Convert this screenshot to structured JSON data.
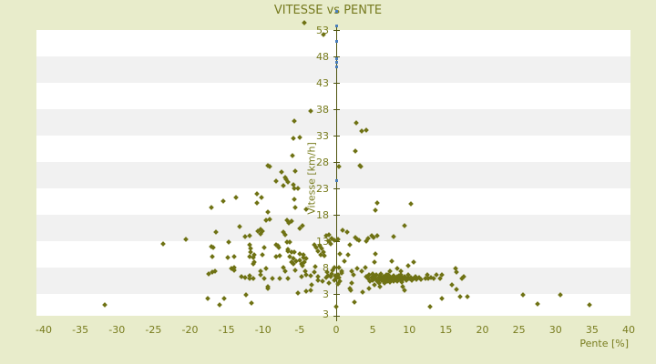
{
  "title": "VITESSE vs PENTE",
  "colors": {
    "page_background": "#e8eccb",
    "band_white": "#ffffff",
    "band_grey": "#f1f1f1",
    "axis_line": "#4f540e",
    "text_olive": "#787c1e",
    "point_olive": "#6f7214",
    "point_blue": "#4a7ebb"
  },
  "x_axis": {
    "label": "Pente [%]",
    "ticks": [
      -40,
      -35,
      -30,
      -25,
      -20,
      -15,
      -10,
      -5,
      0,
      5,
      10,
      15,
      20,
      25,
      30,
      35,
      40
    ],
    "min": -40,
    "max": 40
  },
  "y_axis": {
    "label": "Vitesse [km/h]",
    "ticks": [
      53,
      48,
      43,
      38,
      33,
      28,
      23,
      18,
      13,
      8,
      3
    ],
    "bottom_label": "3"
  },
  "chart_data": {
    "type": "scatter",
    "title": "VITESSE vs PENTE",
    "xlabel": "Pente [%]",
    "ylabel": "Vitesse [km/h]",
    "xlim": [
      -40,
      40
    ],
    "ylim": [
      -1.2,
      53
    ],
    "grid": "horizontal-bands",
    "legend": "none",
    "series": [
      {
        "name": "vitesse-vs-pente",
        "marker": "diamond",
        "color_key": "point_olive",
        "points": [
          [
            -31.6,
            0.9
          ],
          [
            -23.7,
            12.5
          ],
          [
            -20.5,
            13.3
          ],
          [
            -17.6,
            2.1
          ],
          [
            -17.4,
            6.8
          ],
          [
            -17.1,
            19.4
          ],
          [
            -17.1,
            12.0
          ],
          [
            -17.0,
            10.1
          ],
          [
            -16.9,
            7.0
          ],
          [
            -16.8,
            11.8
          ],
          [
            -16.6,
            7.3
          ],
          [
            -16.4,
            14.6
          ],
          [
            -15.9,
            0.9
          ],
          [
            -15.4,
            20.6
          ],
          [
            -15.3,
            2.1
          ],
          [
            -14.8,
            9.9
          ],
          [
            -14.7,
            12.8
          ],
          [
            -14.3,
            7.7
          ],
          [
            -14.0,
            10.1
          ],
          [
            -14.0,
            7.5
          ],
          [
            -13.9,
            8.0
          ],
          [
            -13.7,
            21.3
          ],
          [
            -13.2,
            15.8
          ],
          [
            -13.0,
            6.3
          ],
          [
            -12.5,
            13.9
          ],
          [
            -12.4,
            6.1
          ],
          [
            -12.3,
            2.7
          ],
          [
            -11.9,
            14.0
          ],
          [
            -11.9,
            12.3
          ],
          [
            -11.9,
            10.1
          ],
          [
            -11.8,
            6.4
          ],
          [
            -11.8,
            5.9
          ],
          [
            -11.7,
            11.6
          ],
          [
            -11.7,
            10.8
          ],
          [
            -11.6,
            1.3
          ],
          [
            -11.4,
            9.9
          ],
          [
            -11.4,
            8.7
          ],
          [
            -11.3,
            5.9
          ],
          [
            -11.2,
            10.4
          ],
          [
            -11.2,
            9.0
          ],
          [
            -10.9,
            20.2
          ],
          [
            -10.8,
            22.0
          ],
          [
            -10.7,
            14.9
          ],
          [
            -10.4,
            15.2
          ],
          [
            -10.4,
            14.4
          ],
          [
            -10.3,
            7.3
          ],
          [
            -10.3,
            6.6
          ],
          [
            -10.2,
            21.3
          ],
          [
            -10.1,
            14.9
          ],
          [
            -10.1,
            10.4
          ],
          [
            -9.9,
            11.8
          ],
          [
            -9.8,
            5.9
          ],
          [
            -9.6,
            17.0
          ],
          [
            -9.6,
            7.8
          ],
          [
            -9.4,
            18.5
          ],
          [
            -9.3,
            27.3
          ],
          [
            -9.3,
            4.4
          ],
          [
            -9.3,
            4.0
          ],
          [
            -9.1,
            27.1
          ],
          [
            -9.1,
            17.1
          ],
          [
            -8.7,
            5.9
          ],
          [
            -8.2,
            24.4
          ],
          [
            -8.2,
            12.3
          ],
          [
            -8.2,
            10.1
          ],
          [
            -8.0,
            12.1
          ],
          [
            -7.8,
            11.8
          ],
          [
            -7.7,
            10.2
          ],
          [
            -7.7,
            5.8
          ],
          [
            -7.5,
            26.1
          ],
          [
            -7.2,
            23.5
          ],
          [
            -7.2,
            14.6
          ],
          [
            -7.2,
            8.0
          ],
          [
            -7.0,
            25.1
          ],
          [
            -7.0,
            14.2
          ],
          [
            -7.0,
            7.3
          ],
          [
            -6.8,
            24.7
          ],
          [
            -6.7,
            17.0
          ],
          [
            -6.7,
            12.8
          ],
          [
            -6.6,
            24.2
          ],
          [
            -6.6,
            11.4
          ],
          [
            -6.6,
            11.1
          ],
          [
            -6.6,
            5.8
          ],
          [
            -6.5,
            16.4
          ],
          [
            -6.3,
            12.8
          ],
          [
            -6.3,
            10.1
          ],
          [
            -6.1,
            16.8
          ],
          [
            -6.1,
            10.8
          ],
          [
            -6.1,
            9.0
          ],
          [
            -6.0,
            29.2
          ],
          [
            -5.8,
            32.5
          ],
          [
            -5.8,
            23.7
          ],
          [
            -5.8,
            9.7
          ],
          [
            -5.8,
            8.7
          ],
          [
            -5.7,
            35.8
          ],
          [
            -5.7,
            23.0
          ],
          [
            -5.7,
            20.9
          ],
          [
            -5.7,
            10.9
          ],
          [
            -5.6,
            26.3
          ],
          [
            -5.6,
            19.4
          ],
          [
            -5.6,
            7.5
          ],
          [
            -5.5,
            9.2
          ],
          [
            -5.2,
            23.0
          ],
          [
            -5.2,
            3.2
          ],
          [
            -5.0,
            32.7
          ],
          [
            -5.0,
            15.4
          ],
          [
            -5.0,
            10.6
          ],
          [
            -5.0,
            9.4
          ],
          [
            -4.7,
            8.7
          ],
          [
            -4.7,
            6.3
          ],
          [
            -4.6,
            15.9
          ],
          [
            -4.6,
            8.3
          ],
          [
            -4.5,
            10.4
          ],
          [
            -4.5,
            9.9
          ],
          [
            -4.3,
            54.4
          ],
          [
            -4.3,
            9.0
          ],
          [
            -4.2,
            7.3
          ],
          [
            -4.1,
            19.0
          ],
          [
            -4.1,
            9.7
          ],
          [
            -4.1,
            6.6
          ],
          [
            -4.1,
            3.5
          ],
          [
            -3.5,
            37.7
          ],
          [
            -3.5,
            6.4
          ],
          [
            -3.5,
            3.7
          ],
          [
            -3.4,
            4.6
          ],
          [
            -3.0,
            12.3
          ],
          [
            -3.0,
            7.1
          ],
          [
            -2.9,
            8.2
          ],
          [
            -2.7,
            11.8
          ],
          [
            -2.5,
            11.1
          ],
          [
            -2.5,
            6.3
          ],
          [
            -2.5,
            5.6
          ],
          [
            -2.2,
            12.1
          ],
          [
            -2.1,
            10.4
          ],
          [
            -2.0,
            11.6
          ],
          [
            -1.9,
            5.4
          ],
          [
            -1.7,
            52.1
          ],
          [
            -1.7,
            10.8
          ],
          [
            -1.6,
            10.2
          ],
          [
            -1.4,
            14.0
          ],
          [
            -1.4,
            6.0
          ],
          [
            -1.2,
            7.0
          ],
          [
            -1.1,
            6.4
          ],
          [
            -1.0,
            14.2
          ],
          [
            -1.0,
            13.0
          ],
          [
            -1.0,
            5.0
          ],
          [
            -0.8,
            6.2
          ],
          [
            -0.7,
            12.5
          ],
          [
            -0.6,
            13.5
          ],
          [
            -0.6,
            6.8
          ],
          [
            -0.5,
            7.5
          ],
          [
            -0.3,
            5.5
          ],
          [
            -0.2,
            13.2
          ],
          [
            -0.2,
            7.9
          ],
          [
            -0.1,
            6.4
          ],
          [
            0.0,
            5.9
          ],
          [
            0.0,
            0.6
          ],
          [
            0.2,
            13.3
          ],
          [
            0.2,
            6.6
          ],
          [
            0.3,
            4.9
          ],
          [
            0.4,
            27.1
          ],
          [
            0.4,
            8.0
          ],
          [
            0.4,
            6.1
          ],
          [
            0.5,
            10.6
          ],
          [
            0.5,
            5.3
          ],
          [
            0.7,
            7.3
          ],
          [
            0.8,
            6.9
          ],
          [
            0.9,
            15.1
          ],
          [
            1.1,
            9.2
          ],
          [
            1.5,
            14.7
          ],
          [
            1.6,
            10.4
          ],
          [
            1.9,
            12.3
          ],
          [
            1.9,
            3.9
          ],
          [
            2.0,
            3.7
          ],
          [
            2.1,
            7.3
          ],
          [
            2.1,
            5.1
          ],
          [
            2.4,
            6.6
          ],
          [
            2.5,
            1.4
          ],
          [
            2.6,
            30.1
          ],
          [
            2.6,
            13.7
          ],
          [
            2.7,
            35.4
          ],
          [
            2.9,
            13.3
          ],
          [
            2.9,
            7.7
          ],
          [
            3.1,
            13.2
          ],
          [
            3.2,
            27.3
          ],
          [
            3.4,
            27.1
          ],
          [
            3.5,
            33.9
          ],
          [
            3.5,
            7.3
          ],
          [
            3.6,
            3.3
          ],
          [
            4.0,
            8.0
          ],
          [
            4.1,
            34.0
          ],
          [
            4.1,
            13.0
          ],
          [
            4.3,
            13.5
          ],
          [
            4.5,
            4.0
          ],
          [
            4.8,
            14.0
          ],
          [
            5.1,
            13.7
          ],
          [
            5.2,
            8.9
          ],
          [
            5.2,
            4.6
          ],
          [
            5.3,
            18.9
          ],
          [
            5.3,
            10.6
          ],
          [
            5.6,
            20.2
          ],
          [
            5.6,
            14.0
          ],
          [
            6.0,
            4.4
          ],
          [
            7.3,
            7.3
          ],
          [
            7.6,
            9.2
          ],
          [
            7.8,
            13.9
          ],
          [
            8.4,
            7.7
          ],
          [
            8.9,
            7.3
          ],
          [
            9.1,
            4.4
          ],
          [
            9.3,
            3.7
          ],
          [
            9.4,
            15.9
          ],
          [
            9.8,
            8.3
          ],
          [
            10.2,
            20.1
          ],
          [
            10.6,
            9.0
          ],
          [
            4.1,
            6.2
          ],
          [
            4.3,
            5.8
          ],
          [
            4.5,
            6.5
          ],
          [
            4.6,
            5.4
          ],
          [
            4.8,
            6.0
          ],
          [
            5.0,
            6.8
          ],
          [
            5.0,
            5.6
          ],
          [
            5.2,
            6.2
          ],
          [
            5.4,
            5.9
          ],
          [
            5.5,
            6.6
          ],
          [
            5.6,
            5.3
          ],
          [
            5.8,
            6.1
          ],
          [
            5.9,
            5.0
          ],
          [
            6.0,
            6.4
          ],
          [
            6.0,
            5.7
          ],
          [
            6.1,
            6.7
          ],
          [
            6.2,
            5.5
          ],
          [
            6.3,
            6.0
          ],
          [
            6.5,
            6.3
          ],
          [
            6.5,
            5.6
          ],
          [
            6.6,
            5.1
          ],
          [
            6.7,
            5.9
          ],
          [
            6.8,
            6.5
          ],
          [
            7.0,
            6.1
          ],
          [
            7.0,
            5.4
          ],
          [
            7.1,
            6.6
          ],
          [
            7.2,
            5.8
          ],
          [
            7.3,
            6.3
          ],
          [
            7.4,
            5.2
          ],
          [
            7.5,
            5.6
          ],
          [
            7.6,
            6.0
          ],
          [
            7.8,
            6.4
          ],
          [
            7.8,
            5.4
          ],
          [
            8.0,
            5.9
          ],
          [
            8.2,
            5.6
          ],
          [
            8.3,
            6.2
          ],
          [
            8.4,
            5.3
          ],
          [
            8.5,
            5.8
          ],
          [
            8.6,
            6.4
          ],
          [
            8.8,
            5.5
          ],
          [
            8.9,
            6.6
          ],
          [
            9.0,
            6.0
          ],
          [
            9.0,
            5.2
          ],
          [
            9.1,
            5.7
          ],
          [
            9.3,
            6.2
          ],
          [
            9.5,
            5.9
          ],
          [
            9.6,
            5.5
          ],
          [
            9.8,
            6.1
          ],
          [
            9.9,
            6.5
          ],
          [
            10.0,
            5.8
          ],
          [
            10.2,
            6.0
          ],
          [
            10.4,
            5.6
          ],
          [
            10.6,
            5.9
          ],
          [
            10.8,
            6.2
          ],
          [
            11.0,
            5.7
          ],
          [
            11.3,
            6.0
          ],
          [
            11.6,
            5.7
          ],
          [
            12.2,
            5.9
          ],
          [
            12.5,
            6.6
          ],
          [
            12.6,
            5.9
          ],
          [
            12.8,
            0.5
          ],
          [
            12.9,
            6.0
          ],
          [
            13.3,
            5.8
          ],
          [
            13.7,
            6.6
          ],
          [
            14.2,
            5.9
          ],
          [
            14.4,
            6.6
          ],
          [
            14.5,
            2.0
          ],
          [
            15.8,
            4.6
          ],
          [
            16.3,
            7.7
          ],
          [
            16.4,
            7.0
          ],
          [
            16.5,
            3.8
          ],
          [
            17.0,
            2.5
          ],
          [
            17.2,
            5.9
          ],
          [
            17.4,
            6.3
          ],
          [
            17.9,
            2.5
          ],
          [
            25.5,
            2.8
          ],
          [
            27.5,
            1.1
          ],
          [
            30.6,
            2.7
          ],
          [
            34.7,
            0.9
          ]
        ]
      },
      {
        "name": "points-bleus-axe-zero",
        "marker": "square",
        "color_key": "point_blue",
        "points": [
          [
            0,
            56.6
          ],
          [
            0,
            53.8
          ],
          [
            0,
            50.9
          ],
          [
            0.1,
            47.6
          ],
          [
            0.1,
            46.9
          ],
          [
            0,
            46.0
          ],
          [
            0,
            24.5
          ]
        ]
      }
    ]
  }
}
